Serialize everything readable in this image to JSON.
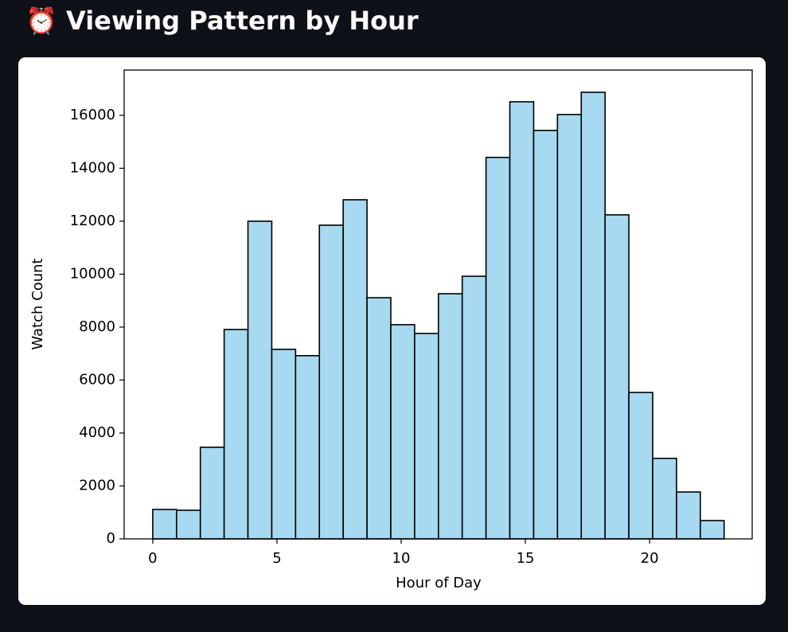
{
  "chart_data": {
    "type": "histogram",
    "title": "⏰ Viewing Pattern by Hour",
    "xlabel": "Hour of Day",
    "ylabel": "Watch Count",
    "bins": [
      0,
      0.958333,
      1.916667,
      2.875,
      3.833333,
      4.791667,
      5.75,
      6.708333,
      7.666667,
      8.625,
      9.583333,
      10.541667,
      11.5,
      12.458333,
      13.416667,
      14.375,
      15.333333,
      16.291667,
      17.25,
      18.208333,
      19.166667,
      20.125,
      21.083333,
      22.041667,
      23
    ],
    "values": [
      1110,
      1080,
      3460,
      7910,
      12000,
      7160,
      6920,
      11850,
      12810,
      9110,
      8090,
      7760,
      9260,
      9920,
      14410,
      16510,
      15430,
      16030,
      16870,
      12240,
      5530,
      3040,
      1770,
      690
    ],
    "color": "#a7d9f0",
    "edgecolor": "#000000",
    "xlim": [
      -1.15,
      24.13
    ],
    "xticks": [
      0,
      5,
      10,
      15,
      20
    ],
    "ylim": [
      0,
      17710
    ],
    "yticks": [
      0,
      2000,
      4000,
      6000,
      8000,
      10000,
      12000,
      14000,
      16000
    ]
  }
}
